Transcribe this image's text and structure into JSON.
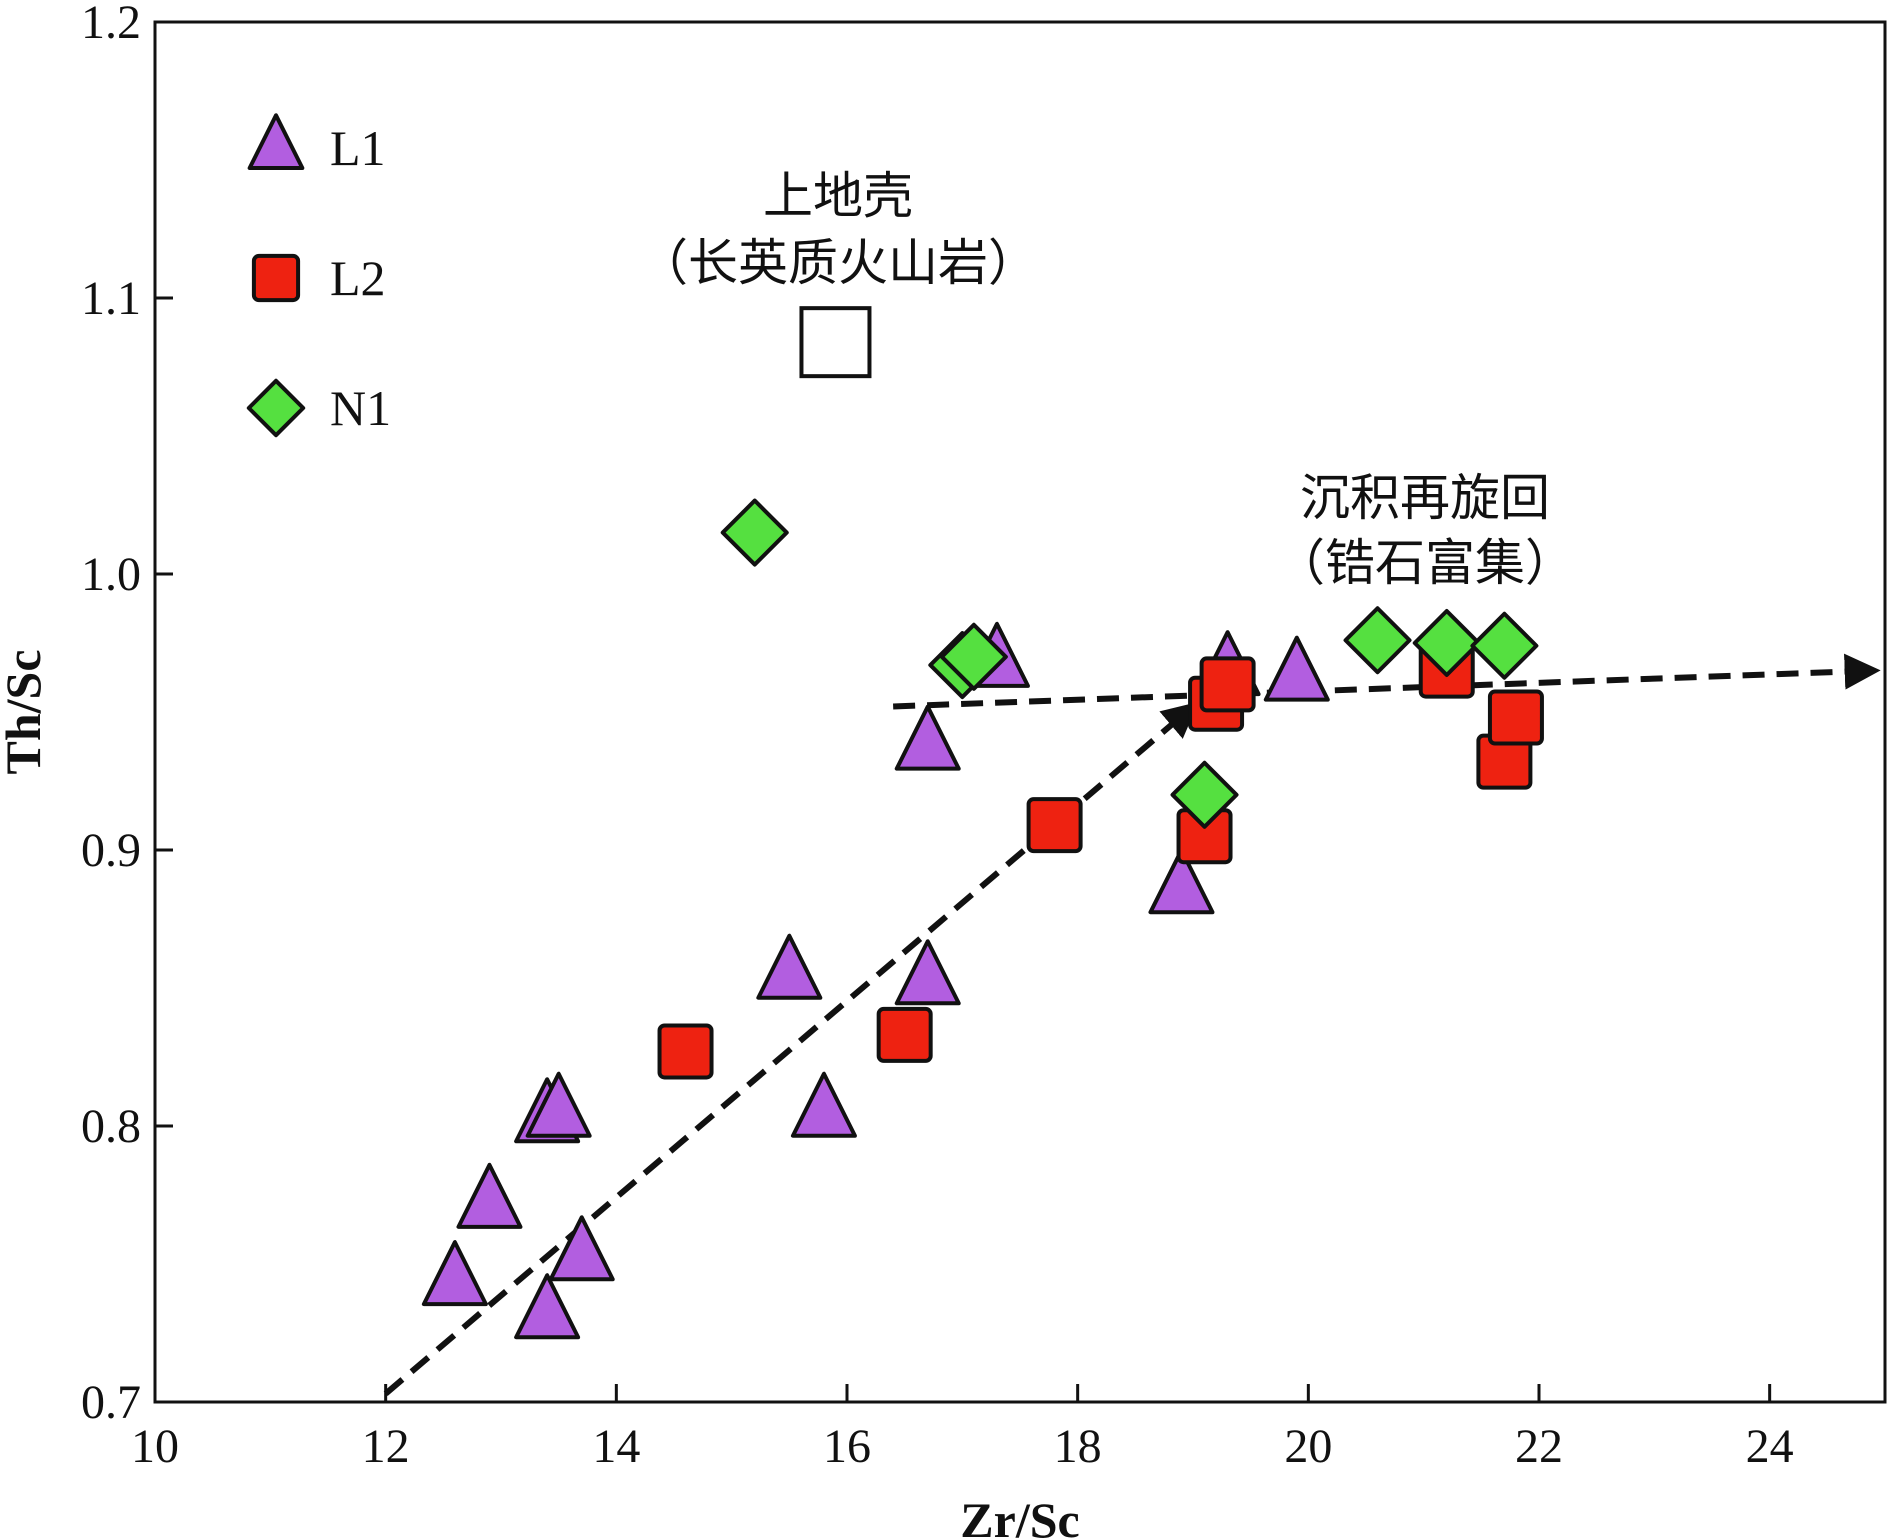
{
  "chart_data": {
    "type": "scatter",
    "xlabel": "Zr/Sc",
    "ylabel": "Th/Sc",
    "xlim": [
      10,
      25
    ],
    "ylim": [
      0.7,
      1.2
    ],
    "xticks": [
      "10",
      "12",
      "14",
      "16",
      "18",
      "20",
      "22",
      "24"
    ],
    "yticks": [
      "0.7",
      "0.8",
      "0.9",
      "1.0",
      "1.1",
      "1.2"
    ],
    "grid": false,
    "legend_position": "top-left",
    "series": [
      {
        "name": "L1",
        "marker": "triangle",
        "color": "#b25ee0",
        "points": [
          {
            "x": 12.6,
            "y": 0.744
          },
          {
            "x": 12.9,
            "y": 0.772
          },
          {
            "x": 13.4,
            "y": 0.732
          },
          {
            "x": 13.4,
            "y": 0.803
          },
          {
            "x": 13.5,
            "y": 0.805
          },
          {
            "x": 13.7,
            "y": 0.753
          },
          {
            "x": 15.5,
            "y": 0.855
          },
          {
            "x": 15.8,
            "y": 0.805
          },
          {
            "x": 16.7,
            "y": 0.938
          },
          {
            "x": 16.7,
            "y": 0.853
          },
          {
            "x": 17.3,
            "y": 0.968
          },
          {
            "x": 18.9,
            "y": 0.886
          },
          {
            "x": 19.3,
            "y": 0.965
          },
          {
            "x": 19.9,
            "y": 0.963
          }
        ]
      },
      {
        "name": "L2",
        "marker": "square",
        "color": "#ee2211",
        "points": [
          {
            "x": 14.6,
            "y": 0.827
          },
          {
            "x": 16.5,
            "y": 0.833
          },
          {
            "x": 17.8,
            "y": 0.909
          },
          {
            "x": 19.1,
            "y": 0.905
          },
          {
            "x": 19.2,
            "y": 0.953
          },
          {
            "x": 19.3,
            "y": 0.96
          },
          {
            "x": 21.2,
            "y": 0.965
          },
          {
            "x": 21.7,
            "y": 0.932
          },
          {
            "x": 21.8,
            "y": 0.948
          }
        ]
      },
      {
        "name": "N1",
        "marker": "diamond",
        "color": "#55e040",
        "points": [
          {
            "x": 15.2,
            "y": 1.015
          },
          {
            "x": 17.0,
            "y": 0.967
          },
          {
            "x": 17.1,
            "y": 0.97
          },
          {
            "x": 19.1,
            "y": 0.92
          },
          {
            "x": 20.6,
            "y": 0.976
          },
          {
            "x": 21.2,
            "y": 0.975
          },
          {
            "x": 21.7,
            "y": 0.974
          }
        ]
      }
    ],
    "reference_point": {
      "x": 15.9,
      "y": 1.084
    },
    "annotations": {
      "upper_crust_line1": "上地壳",
      "upper_crust_line2": "（长英质火山岩）",
      "recycling_line1": "沉积再旋回",
      "recycling_line2": "（锆石富集）"
    },
    "arrows": [
      {
        "from": {
          "x": 12.0,
          "y": 0.703
        },
        "to": {
          "x": 19.0,
          "y": 0.952
        }
      },
      {
        "from": {
          "x": 16.4,
          "y": 0.952
        },
        "to": {
          "x": 24.9,
          "y": 0.965
        }
      }
    ]
  }
}
